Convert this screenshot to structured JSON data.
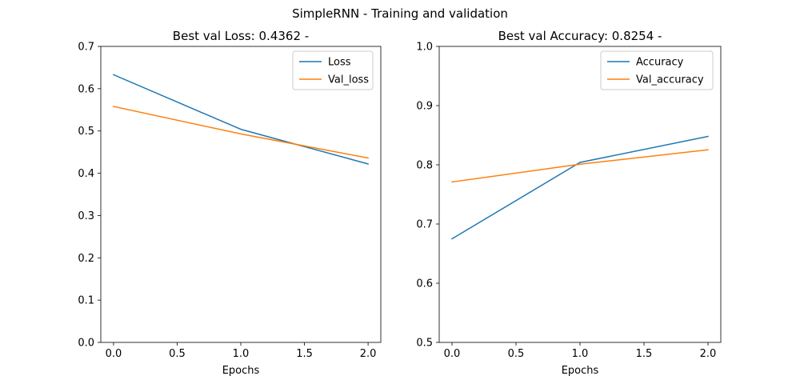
{
  "figure": {
    "suptitle": "SimpleRNN - Training and validation"
  },
  "chart_data": [
    {
      "type": "line",
      "title": "Best val Loss: 0.4362 -",
      "xlabel": "Epochs",
      "ylabel": "",
      "xlim": [
        -0.1,
        2.1
      ],
      "ylim": [
        0.0,
        0.7
      ],
      "xticks": [
        0.0,
        0.5,
        1.0,
        1.5,
        2.0
      ],
      "xtick_labels": [
        "0.0",
        "0.5",
        "1.0",
        "1.5",
        "2.0"
      ],
      "yticks": [
        0.0,
        0.1,
        0.2,
        0.3,
        0.4,
        0.5,
        0.6,
        0.7
      ],
      "ytick_labels": [
        "0.0",
        "0.1",
        "0.2",
        "0.3",
        "0.4",
        "0.5",
        "0.6",
        "0.7"
      ],
      "grid": false,
      "legend_position": "top-right",
      "x": [
        0,
        1,
        2
      ],
      "series": [
        {
          "name": "Loss",
          "color": "#1f77b4",
          "values": [
            0.633,
            0.504,
            0.422
          ]
        },
        {
          "name": "Val_loss",
          "color": "#ff7f0e",
          "values": [
            0.558,
            0.493,
            0.4362
          ]
        }
      ]
    },
    {
      "type": "line",
      "title": "Best val Accuracy: 0.8254 -",
      "xlabel": "Epochs",
      "ylabel": "",
      "xlim": [
        -0.1,
        2.1
      ],
      "ylim": [
        0.5,
        1.0
      ],
      "xticks": [
        0.0,
        0.5,
        1.0,
        1.5,
        2.0
      ],
      "xtick_labels": [
        "0.0",
        "0.5",
        "1.0",
        "1.5",
        "2.0"
      ],
      "yticks": [
        0.5,
        0.6,
        0.7,
        0.8,
        0.9,
        1.0
      ],
      "ytick_labels": [
        "0.5",
        "0.6",
        "0.7",
        "0.8",
        "0.9",
        "1.0"
      ],
      "grid": false,
      "legend_position": "top-right",
      "x": [
        0,
        1,
        2
      ],
      "series": [
        {
          "name": "Accuracy",
          "color": "#1f77b4",
          "values": [
            0.675,
            0.804,
            0.848
          ]
        },
        {
          "name": "Val_accuracy",
          "color": "#ff7f0e",
          "values": [
            0.771,
            0.801,
            0.8254
          ]
        }
      ]
    }
  ]
}
